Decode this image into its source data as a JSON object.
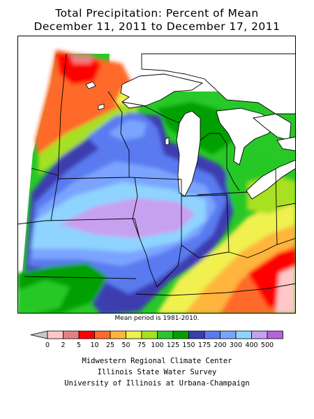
{
  "title": {
    "line1": "Total Precipitation: Percent of Mean",
    "line2": "December 11, 2011 to December 17, 2011"
  },
  "note": "Mean period is 1981-2010.",
  "legend": {
    "ticks": [
      "0",
      "2",
      "5",
      "10",
      "25",
      "50",
      "75",
      "100",
      "125",
      "150",
      "175",
      "200",
      "300",
      "400",
      "500"
    ],
    "colors": [
      "#ffc8c8",
      "#e88080",
      "#ff0000",
      "#ff6a2a",
      "#ffb43c",
      "#f0f050",
      "#a8e020",
      "#28c828",
      "#00a000",
      "#3c3cb0",
      "#5a7af0",
      "#7aa4ff",
      "#8ed4ff",
      "#c8a0f0",
      "#b464dc"
    ],
    "underflow_color": "#c8c8c8"
  },
  "credits": [
    "Midwestern Regional Climate Center",
    "Illinois State Water Survey",
    "University of Illinois at Urbana-Champaign"
  ]
}
